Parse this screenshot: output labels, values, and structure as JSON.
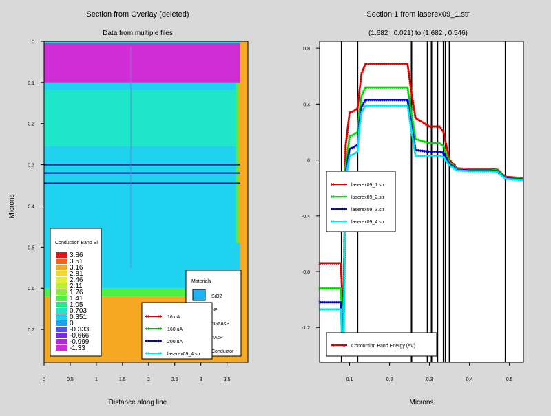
{
  "left_plot": {
    "title": "Section from Overlay (deleted)",
    "subtitle": "Data from multiple files",
    "xlabel": "Distance along line",
    "ylabel": "Microns",
    "xticks": [
      "0",
      "0.5",
      "1",
      "1.5",
      "2",
      "2.5",
      "3",
      "3.5"
    ],
    "yticks": [
      "0",
      "0.1",
      "0.2",
      "0.3",
      "0.4",
      "0.5",
      "0.6",
      "0.7"
    ],
    "colorbar": {
      "title": "Conduction Band Ei",
      "levels": [
        "3.86",
        "3.51",
        "3.16",
        "2.81",
        "2.46",
        "2.11",
        "1.76",
        "1.41",
        "1.05",
        "0.703",
        "0.351",
        "0",
        "-0.333",
        "-0.666",
        "-0.999",
        "-1.33"
      ],
      "colors": [
        "#e4141c",
        "#f0641e",
        "#f6a823",
        "#f5d530",
        "#e4ee35",
        "#bef035",
        "#8af03a",
        "#4ef046",
        "#28e68c",
        "#1ee6c8",
        "#1ed2f0",
        "#1ea0f0",
        "#5050e6",
        "#7a2be0",
        "#a82fd6",
        "#d12dd6"
      ]
    },
    "materials_legend": {
      "title": "Materials",
      "items": [
        {
          "label": "SiO2",
          "color": "#1eb4f5"
        },
        {
          "label": "nP",
          "color": "#2a2a2a"
        },
        {
          "label": "nGaAsP",
          "color": "#2a2a2a"
        },
        {
          "label": "nAsP",
          "color": "#2a2a2a"
        },
        {
          "label": "Conductor",
          "color": "#2a2a2a"
        }
      ]
    },
    "series_legend": [
      {
        "label": "16 uA",
        "color": "#dd0000"
      },
      {
        "label": "160 uA",
        "color": "#00bb00"
      },
      {
        "label": "200 uA",
        "color": "#0000dd"
      },
      {
        "label": "laserex09_4.str",
        "color": "#00e5e5"
      }
    ]
  },
  "right_plot": {
    "title": "Section 1 from laserex09_1.str",
    "subtitle": "(1.682 , 0.021) to (1.682 , 0.546)",
    "xlabel": "Microns",
    "legend_series": [
      "laserex09_1.str",
      "laserex09_2.str",
      "laserex09_3.str",
      "laserex09_4.str"
    ],
    "legend_bottom": "Conduction Band Energy (eV)"
  },
  "chart_data": [
    {
      "type": "heatmap",
      "title": "Section from Overlay (deleted)",
      "subtitle": "Data from multiple files",
      "xlabel": "Distance along line",
      "ylabel": "Microns",
      "xlim": [
        0,
        3.9
      ],
      "ylim": [
        0.78,
        0
      ],
      "colorbar_title": "Conduction Band Ei",
      "colorbar_levels": [
        3.86,
        3.51,
        3.16,
        2.81,
        2.46,
        2.11,
        1.76,
        1.41,
        1.05,
        0.703,
        0.351,
        0,
        -0.333,
        -0.666,
        -0.999,
        -1.33
      ],
      "regions": [
        {
          "x": [
            0,
            3.75
          ],
          "y": [
            0,
            0.005
          ],
          "level": 0.351
        },
        {
          "x": [
            0,
            3.75
          ],
          "y": [
            0.005,
            0.1
          ],
          "level": -1.33
        },
        {
          "x": [
            0,
            3.75
          ],
          "y": [
            0.1,
            0.12
          ],
          "level": 0.351
        },
        {
          "x": [
            0,
            3.75
          ],
          "y": [
            0.12,
            0.255
          ],
          "level": 0.703
        },
        {
          "x": [
            0,
            3.75
          ],
          "y": [
            0.255,
            0.6
          ],
          "level": 0.351
        },
        {
          "x": [
            0,
            3.75
          ],
          "y": [
            0.6,
            0.62
          ],
          "level": 1.41
        },
        {
          "x": [
            0,
            3.75
          ],
          "y": [
            0.62,
            0.78
          ],
          "level": 3.16
        },
        {
          "x": [
            3.75,
            3.9
          ],
          "y": [
            0,
            0.78
          ],
          "level": 3.16
        }
      ],
      "horizontal_lines_y": [
        0.3,
        0.32,
        0.345
      ],
      "series": [
        {
          "name": "16 uA"
        },
        {
          "name": "160 uA"
        },
        {
          "name": "200 uA"
        },
        {
          "name": "laserex09_4.str"
        }
      ]
    },
    {
      "type": "line",
      "title": "Section 1 from laserex09_1.str",
      "subtitle": "(1.682 , 0.021) to (1.682 , 0.546)",
      "xlabel": "Microns",
      "ylabel": "",
      "xlim": [
        0.025,
        0.535
      ],
      "ylim": [
        -1.45,
        0.85
      ],
      "xticks": [
        0.1,
        0.2,
        0.3,
        0.4,
        0.5
      ],
      "yticks": [
        0.8,
        0.4,
        0,
        -0.4,
        -0.8,
        -1.2
      ],
      "vertical_lines_x": [
        0.08,
        0.12,
        0.255,
        0.295,
        0.305,
        0.32,
        0.335,
        0.34,
        0.35,
        0.49
      ],
      "series": [
        {
          "name": "laserex09_1.str",
          "color": "#dd0000",
          "x": [
            0.025,
            0.07,
            0.078,
            0.082,
            0.085,
            0.09,
            0.1,
            0.11,
            0.12,
            0.125,
            0.13,
            0.14,
            0.2,
            0.245,
            0.255,
            0.265,
            0.3,
            0.325,
            0.335,
            0.35,
            0.37,
            0.4,
            0.45,
            0.47,
            0.49,
            0.535
          ],
          "y": [
            -0.74,
            -0.74,
            -0.74,
            -0.98,
            -1.05,
            0.1,
            0.34,
            0.35,
            0.37,
            0.5,
            0.62,
            0.69,
            0.69,
            0.69,
            0.48,
            0.3,
            0.24,
            0.24,
            0.2,
            0.0,
            -0.06,
            -0.065,
            -0.065,
            -0.07,
            -0.12,
            -0.13
          ]
        },
        {
          "name": "laserex09_2.str",
          "color": "#00dd00",
          "x": [
            0.025,
            0.07,
            0.078,
            0.082,
            0.085,
            0.09,
            0.1,
            0.11,
            0.12,
            0.125,
            0.13,
            0.14,
            0.2,
            0.245,
            0.255,
            0.265,
            0.3,
            0.325,
            0.335,
            0.35,
            0.37,
            0.4,
            0.45,
            0.47,
            0.49,
            0.535
          ],
          "y": [
            -0.92,
            -0.92,
            -0.92,
            -1.15,
            -1.2,
            -0.05,
            0.17,
            0.18,
            0.2,
            0.35,
            0.46,
            0.52,
            0.52,
            0.52,
            0.33,
            0.15,
            0.12,
            0.12,
            0.1,
            -0.02,
            -0.065,
            -0.07,
            -0.07,
            -0.075,
            -0.125,
            -0.135
          ]
        },
        {
          "name": "laserex09_3.str",
          "color": "#0000dd",
          "x": [
            0.025,
            0.07,
            0.078,
            0.082,
            0.085,
            0.09,
            0.1,
            0.11,
            0.12,
            0.125,
            0.13,
            0.14,
            0.2,
            0.245,
            0.255,
            0.265,
            0.3,
            0.325,
            0.335,
            0.35,
            0.37,
            0.4,
            0.45,
            0.47,
            0.49,
            0.535
          ],
          "y": [
            -1.02,
            -1.02,
            -1.02,
            -1.25,
            -1.3,
            -0.1,
            0.08,
            0.09,
            0.11,
            0.28,
            0.38,
            0.43,
            0.43,
            0.43,
            0.25,
            0.07,
            0.06,
            0.06,
            0.05,
            -0.03,
            -0.07,
            -0.075,
            -0.075,
            -0.08,
            -0.13,
            -0.14
          ]
        },
        {
          "name": "laserex09_4.str",
          "color": "#00e5e5",
          "x": [
            0.025,
            0.07,
            0.078,
            0.082,
            0.085,
            0.09,
            0.1,
            0.11,
            0.12,
            0.125,
            0.13,
            0.14,
            0.2,
            0.245,
            0.255,
            0.265,
            0.3,
            0.325,
            0.335,
            0.35,
            0.37,
            0.4,
            0.45,
            0.47,
            0.49,
            0.535
          ],
          "y": [
            -1.07,
            -1.07,
            -1.07,
            -1.3,
            -1.33,
            -0.15,
            0.03,
            0.04,
            0.06,
            0.24,
            0.34,
            0.39,
            0.39,
            0.39,
            0.21,
            0.03,
            0.03,
            0.03,
            0.02,
            -0.04,
            -0.075,
            -0.08,
            -0.08,
            -0.085,
            -0.135,
            -0.145
          ]
        }
      ]
    }
  ]
}
